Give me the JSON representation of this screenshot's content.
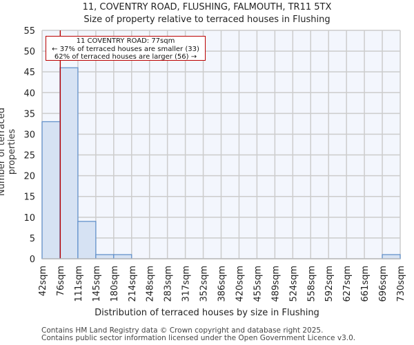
{
  "chart_data": {
    "type": "bar",
    "title": "11, COVENTRY ROAD, FLUSHING, FALMOUTH, TR11 5TX",
    "subtitle": "Size of property relative to terraced houses in Flushing",
    "xlabel": "Distribution of terraced houses by size in Flushing",
    "ylabel": "Number of terraced properties",
    "categories": [
      "42sqm",
      "76sqm",
      "111sqm",
      "145sqm",
      "180sqm",
      "214sqm",
      "248sqm",
      "283sqm",
      "317sqm",
      "352sqm",
      "386sqm",
      "420sqm",
      "455sqm",
      "489sqm",
      "524sqm",
      "558sqm",
      "592sqm",
      "627sqm",
      "661sqm",
      "696sqm",
      "730sqm"
    ],
    "values": [
      33,
      46,
      9,
      1,
      1,
      0,
      0,
      0,
      0,
      0,
      0,
      0,
      0,
      0,
      0,
      0,
      0,
      0,
      0,
      1
    ],
    "ylim": [
      0,
      55
    ],
    "yticks": [
      0,
      5,
      10,
      15,
      20,
      25,
      30,
      35,
      40,
      45,
      50,
      55
    ],
    "grid": true,
    "marker": {
      "value_sqm": 77,
      "color": "#bb0000"
    },
    "bar_color": "#d6e2f3",
    "bar_edge_color": "#5b8cc8",
    "annotation": {
      "line1": "11 COVENTRY ROAD: 77sqm",
      "line2": "← 37% of terraced houses are smaller (33)",
      "line3": "62% of terraced houses are larger (56) →"
    }
  },
  "footer": {
    "line1": "Contains HM Land Registry data © Crown copyright and database right 2025.",
    "line2": "Contains public sector information licensed under the Open Government Licence v3.0."
  }
}
